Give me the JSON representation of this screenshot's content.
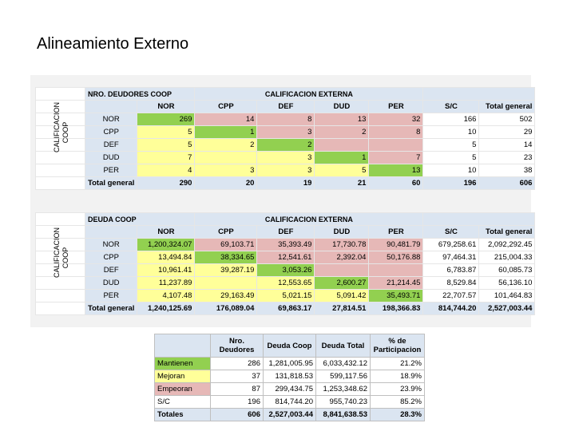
{
  "title": "Alineamiento Externo",
  "table1": {
    "corner": "NRO. DEUDORES COOP",
    "group": "CALIFICACION EXTERNA",
    "side": "CALIFICACION COOP",
    "cols": [
      "NOR",
      "CPP",
      "DEF",
      "DUD",
      "PER",
      "S/C",
      "Total general"
    ],
    "rows": [
      {
        "label": "NOR",
        "cells": [
          "269",
          "14",
          "8",
          "13",
          "32",
          "166",
          "502"
        ]
      },
      {
        "label": "CPP",
        "cells": [
          "5",
          "1",
          "3",
          "2",
          "8",
          "10",
          "29"
        ]
      },
      {
        "label": "DEF",
        "cells": [
          "5",
          "2",
          "2",
          "",
          "",
          "5",
          "14"
        ]
      },
      {
        "label": "DUD",
        "cells": [
          "7",
          "",
          "3",
          "1",
          "7",
          "5",
          "23"
        ]
      },
      {
        "label": "PER",
        "cells": [
          "4",
          "3",
          "3",
          "5",
          "13",
          "10",
          "38"
        ]
      }
    ],
    "total": {
      "label": "Total general",
      "cells": [
        "290",
        "20",
        "19",
        "21",
        "60",
        "196",
        "606"
      ]
    }
  },
  "table2": {
    "corner": "DEUDA COOP",
    "group": "CALIFICACION EXTERNA",
    "side": "CALIFICACION COOP",
    "cols": [
      "NOR",
      "CPP",
      "DEF",
      "DUD",
      "PER",
      "S/C",
      "Total general"
    ],
    "rows": [
      {
        "label": "NOR",
        "cells": [
          "1,200,324.07",
          "69,103.71",
          "35,393.49",
          "17,730.78",
          "90,481.79",
          "679,258.61",
          "2,092,292.45"
        ]
      },
      {
        "label": "CPP",
        "cells": [
          "13,494.84",
          "38,334.65",
          "12,541.61",
          "2,392.04",
          "50,176.88",
          "97,464.31",
          "215,004.33"
        ]
      },
      {
        "label": "DEF",
        "cells": [
          "10,961.41",
          "39,287.19",
          "3,053.26",
          "",
          "",
          "6,783.87",
          "60,085.73"
        ]
      },
      {
        "label": "DUD",
        "cells": [
          "11,237.89",
          "",
          "12,553.65",
          "2,600.27",
          "21,214.45",
          "8,529.84",
          "56,136.10"
        ]
      },
      {
        "label": "PER",
        "cells": [
          "4,107.48",
          "29,163.49",
          "5,021.15",
          "5,091.42",
          "35,493.71",
          "22,707.57",
          "101,464.83"
        ]
      }
    ],
    "total": {
      "label": "Total general",
      "cells": [
        "1,240,125.69",
        "176,089.04",
        "69,863.17",
        "27,814.51",
        "198,366.83",
        "814,744.20",
        "2,527,003.44"
      ]
    }
  },
  "summary": {
    "headers": [
      "",
      "Nro. Deudores",
      "Deuda Coop",
      "Deuda Total",
      "% de Participacion"
    ],
    "rows": [
      {
        "label": "Mantienen",
        "cells": [
          "286",
          "1,281,005.95",
          "6,033,432.12",
          "21.2%"
        ],
        "color": "#92d050"
      },
      {
        "label": "Mejoran",
        "cells": [
          "37",
          "131,818.53",
          "599,117.56",
          "18.9%"
        ],
        "color": "#ffff99"
      },
      {
        "label": "Empeoran",
        "cells": [
          "87",
          "299,434.75",
          "1,253,348.62",
          "23.9%"
        ],
        "color": "#e6b8b7"
      },
      {
        "label": "S/C",
        "cells": [
          "196",
          "814,744.20",
          "955,740.23",
          "85.2%"
        ],
        "color": "#ffffff"
      }
    ],
    "total": {
      "label": "Totales",
      "cells": [
        "606",
        "2,527,003.44",
        "8,841,638.53",
        "28.3%"
      ]
    }
  },
  "colors": {
    "header_blue": "#dbe5f1",
    "green": "#92d050",
    "yellow": "#ffff99",
    "pink": "#e6b8b7"
  }
}
